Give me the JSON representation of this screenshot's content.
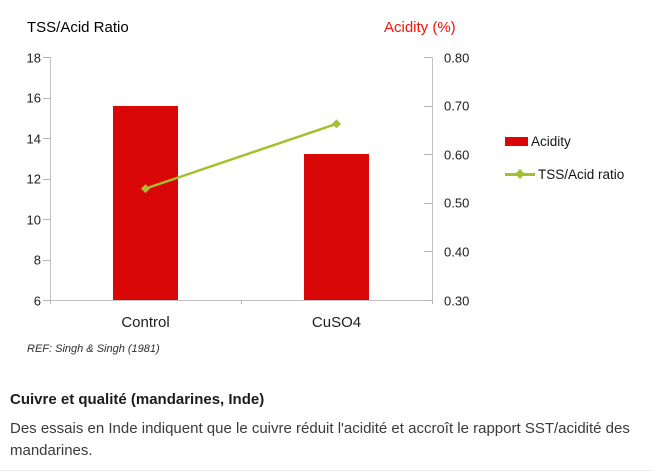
{
  "chart": {
    "source_note": "REF: Singh & Singh (1981)"
  },
  "chart_data": {
    "type": "bar",
    "categories": [
      "Control",
      "CuSO4"
    ],
    "series": [
      {
        "name": "Acidity",
        "type": "bar",
        "axis": "right",
        "color": "#d90707",
        "values": [
          0.7,
          0.6
        ]
      },
      {
        "name": "TSS/Acid ratio",
        "type": "line",
        "axis": "left",
        "color": "#a3c12e",
        "values": [
          11.5,
          14.7
        ]
      }
    ],
    "left_axis": {
      "title": "TSS/Acid Ratio",
      "min": 6,
      "max": 18,
      "ticks": [
        18,
        16,
        14,
        12,
        10,
        8,
        6
      ],
      "decimals": 0
    },
    "right_axis": {
      "title": "Acidity (%)",
      "min": 0.3,
      "max": 0.8,
      "ticks": [
        0.8,
        0.7,
        0.6,
        0.5,
        0.4,
        0.3
      ],
      "decimals": 2
    },
    "grid": false,
    "legend_position": "right"
  },
  "caption": {
    "heading": "Cuivre et qualité (mandarines, Inde)",
    "body": "Des essais en Inde indiquent que le cuivre réduit l'acidité et accroît le rapport SST/acidité des mandarines."
  },
  "colors": {
    "bar_red": "#d90707",
    "line_green": "#a3c12e",
    "title_red": "#f51109",
    "axis_gray": "#c2c2c2",
    "text_dark": "#1d1d1d"
  }
}
